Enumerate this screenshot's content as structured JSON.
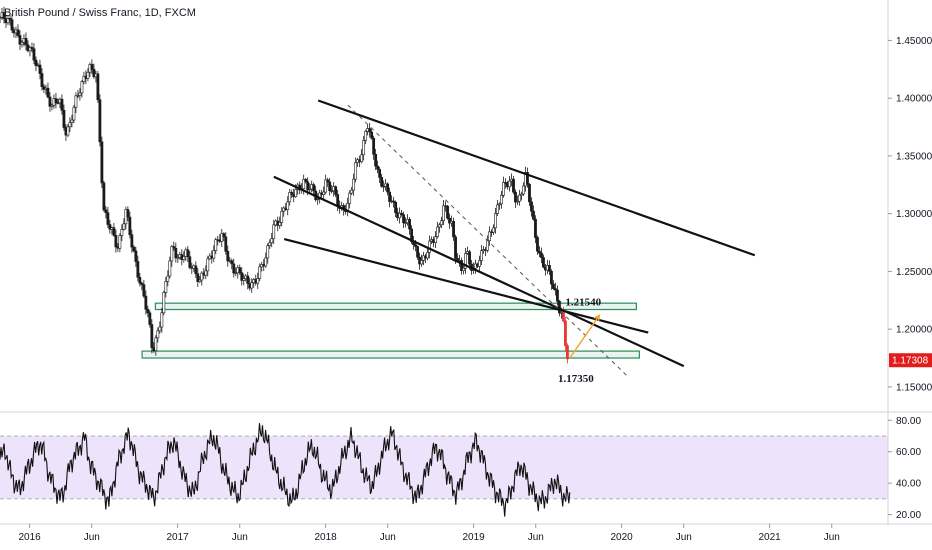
{
  "header": {
    "title": "British Pound / Swiss Franc, 1D, FXCM"
  },
  "colors": {
    "candle_up": "#1b1b1b",
    "candle_down": "#1b1b1b",
    "red_leg": "#e53935",
    "projection": "#f5a623",
    "zone_fill": "#e6f5ef",
    "zone_border": "#2e8b57",
    "rsi_band": "#ede3fb",
    "rsi_line": "#111111",
    "price_tag": "#e21b1b"
  },
  "chart_data": [
    {
      "type": "candlestick",
      "title": "British Pound / Swiss Franc, 1D, FXCM",
      "y_ticks": [
        "1.45000",
        "1.40000",
        "1.35000",
        "1.30000",
        "1.25000",
        "1.20000",
        "1.15000"
      ],
      "ylim": [
        1.13,
        1.485
      ],
      "x_ticks": [
        "2016",
        "Jun",
        "2017",
        "Jun",
        "2018",
        "Jun",
        "2019",
        "Jun",
        "2020",
        "Jun",
        "2021",
        "Jun"
      ],
      "x_tick_values": [
        2016.0,
        2016.42,
        2017.0,
        2017.42,
        2018.0,
        2018.42,
        2019.0,
        2019.42,
        2020.0,
        2020.42,
        2021.0,
        2021.42
      ],
      "xlim": [
        2015.8,
        2021.8
      ],
      "last_price": "1.17308",
      "last_price_value": 1.17308,
      "price_path": [
        [
          2015.8,
          1.47
        ],
        [
          2015.9,
          1.46
        ],
        [
          2016.0,
          1.44
        ],
        [
          2016.05,
          1.43
        ],
        [
          2016.1,
          1.41
        ],
        [
          2016.15,
          1.39
        ],
        [
          2016.2,
          1.4
        ],
        [
          2016.25,
          1.37
        ],
        [
          2016.3,
          1.39
        ],
        [
          2016.35,
          1.41
        ],
        [
          2016.4,
          1.43
        ],
        [
          2016.45,
          1.42
        ],
        [
          2016.5,
          1.3
        ],
        [
          2016.55,
          1.29
        ],
        [
          2016.6,
          1.27
        ],
        [
          2016.65,
          1.3
        ],
        [
          2016.7,
          1.27
        ],
        [
          2016.75,
          1.24
        ],
        [
          2016.8,
          1.21
        ],
        [
          2016.83,
          1.18
        ],
        [
          2016.87,
          1.2
        ],
        [
          2016.92,
          1.24
        ],
        [
          2016.97,
          1.27
        ],
        [
          2017.0,
          1.26
        ],
        [
          2017.05,
          1.27
        ],
        [
          2017.1,
          1.25
        ],
        [
          2017.15,
          1.24
        ],
        [
          2017.2,
          1.26
        ],
        [
          2017.25,
          1.27
        ],
        [
          2017.3,
          1.28
        ],
        [
          2017.35,
          1.26
        ],
        [
          2017.4,
          1.25
        ],
        [
          2017.45,
          1.24
        ],
        [
          2017.5,
          1.24
        ],
        [
          2017.55,
          1.25
        ],
        [
          2017.6,
          1.26
        ],
        [
          2017.65,
          1.29
        ],
        [
          2017.7,
          1.3
        ],
        [
          2017.75,
          1.31
        ],
        [
          2017.8,
          1.32
        ],
        [
          2017.85,
          1.33
        ],
        [
          2017.9,
          1.32
        ],
        [
          2017.95,
          1.31
        ],
        [
          2018.0,
          1.33
        ],
        [
          2018.05,
          1.32
        ],
        [
          2018.1,
          1.3
        ],
        [
          2018.15,
          1.31
        ],
        [
          2018.2,
          1.34
        ],
        [
          2018.25,
          1.35
        ],
        [
          2018.28,
          1.38
        ],
        [
          2018.32,
          1.36
        ],
        [
          2018.36,
          1.33
        ],
        [
          2018.4,
          1.32
        ],
        [
          2018.45,
          1.31
        ],
        [
          2018.5,
          1.3
        ],
        [
          2018.55,
          1.29
        ],
        [
          2018.6,
          1.27
        ],
        [
          2018.65,
          1.26
        ],
        [
          2018.7,
          1.27
        ],
        [
          2018.75,
          1.28
        ],
        [
          2018.8,
          1.31
        ],
        [
          2018.85,
          1.29
        ],
        [
          2018.88,
          1.26
        ],
        [
          2018.92,
          1.25
        ],
        [
          2018.95,
          1.27
        ],
        [
          2019.0,
          1.25
        ],
        [
          2019.05,
          1.26
        ],
        [
          2019.1,
          1.28
        ],
        [
          2019.15,
          1.3
        ],
        [
          2019.2,
          1.32
        ],
        [
          2019.25,
          1.33
        ],
        [
          2019.3,
          1.31
        ],
        [
          2019.35,
          1.33
        ],
        [
          2019.38,
          1.31
        ],
        [
          2019.42,
          1.28
        ],
        [
          2019.46,
          1.26
        ],
        [
          2019.5,
          1.25
        ],
        [
          2019.55,
          1.23
        ],
        [
          2019.58,
          1.22
        ],
        [
          2019.6,
          1.215
        ],
        [
          2019.62,
          1.19
        ],
        [
          2019.64,
          1.1735
        ]
      ],
      "annotations": [
        {
          "text": "1.21540",
          "x": 2019.62,
          "y": 1.2154
        },
        {
          "text": "1.17350",
          "x": 2019.57,
          "y": 1.1735
        }
      ],
      "trendlines": [
        {
          "from": [
            2017.95,
            1.398
          ],
          "to": [
            2020.9,
            1.264
          ],
          "style": "solid"
        },
        {
          "from": [
            2017.65,
            1.332
          ],
          "to": [
            2020.42,
            1.168
          ],
          "style": "solid"
        },
        {
          "from": [
            2017.72,
            1.278
          ],
          "to": [
            2020.18,
            1.197
          ],
          "style": "solid"
        },
        {
          "from": [
            2018.15,
            1.394
          ],
          "to": [
            2020.05,
            1.158
          ],
          "style": "dashed"
        }
      ],
      "zones": [
        {
          "from": [
            2016.85,
            1.2225
          ],
          "to": [
            2020.1,
            1.217
          ]
        },
        {
          "from": [
            2016.76,
            1.181
          ],
          "to": [
            2020.12,
            1.175
          ]
        }
      ],
      "projection": {
        "from": [
          2019.65,
          1.175
        ],
        "to": [
          2019.85,
          1.212
        ]
      }
    },
    {
      "type": "line",
      "title": "",
      "y_ticks": [
        "80.00",
        "60.00",
        "40.00",
        "20.00"
      ],
      "ylim": [
        14,
        84
      ],
      "band": [
        30,
        70
      ],
      "series": [
        {
          "values": [
            55,
            62,
            48,
            40,
            35,
            45,
            52,
            60,
            66,
            58,
            44,
            38,
            30,
            36,
            50,
            58,
            62,
            70,
            55,
            46,
            40,
            33,
            28,
            42,
            55,
            64,
            72,
            60,
            48,
            41,
            36,
            30,
            40,
            52,
            61,
            67,
            57,
            45,
            38,
            33,
            44,
            56,
            64,
            70,
            62,
            50,
            42,
            36,
            31,
            39,
            50,
            60,
            68,
            74,
            66,
            54,
            45,
            38,
            32,
            28,
            36,
            48,
            58,
            64,
            56,
            46,
            40,
            35,
            45,
            55,
            63,
            69,
            60,
            50,
            43,
            38,
            46,
            57,
            65,
            72,
            64,
            52,
            44,
            37,
            30,
            38,
            47,
            56,
            63,
            58,
            48,
            40,
            33,
            40,
            52,
            60,
            67,
            60,
            50,
            42,
            35,
            30,
            26,
            34,
            44,
            52,
            46,
            38,
            32,
            28,
            30,
            36,
            42,
            36,
            30,
            32
          ]
        }
      ]
    }
  ]
}
